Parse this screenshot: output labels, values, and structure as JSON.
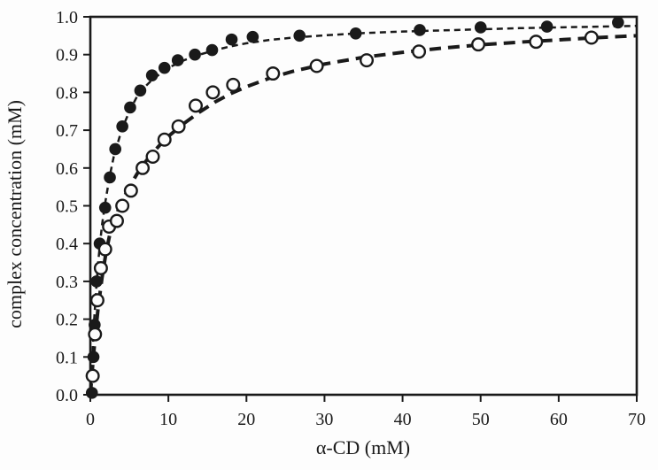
{
  "figure": {
    "background": "#fdfdfd",
    "ink_color": "#1a1a1a"
  },
  "chart_data": {
    "type": "scatter",
    "title": "",
    "xlabel": "α-CD (mM)",
    "ylabel": "complex concentration (mM)",
    "xlim": [
      0,
      70
    ],
    "ylim": [
      0.0,
      1.0
    ],
    "grid": false,
    "legend_position": "none",
    "frame": "full-box",
    "x_ticks": {
      "values": [
        0,
        10,
        20,
        30,
        40,
        50,
        60,
        70
      ],
      "labels": [
        "0",
        "10",
        "20",
        "30",
        "40",
        "50",
        "60",
        "70"
      ]
    },
    "y_ticks": {
      "values": [
        0,
        0.1,
        0.2,
        0.3,
        0.4,
        0.5,
        0.6,
        0.7,
        0.8,
        0.9,
        1.0
      ],
      "labels": [
        "0.0",
        "0.1",
        "0.2",
        "0.3",
        "0.4",
        "0.5",
        "0.6",
        "0.7",
        "0.8",
        "0.9",
        "1.0"
      ]
    },
    "series": [
      {
        "name": "filled circles",
        "marker": "filled-circle",
        "color": "#1a1a1a",
        "points": [
          [
            0.2,
            0.005
          ],
          [
            0.4,
            0.1
          ],
          [
            0.55,
            0.185
          ],
          [
            0.8,
            0.3
          ],
          [
            1.2,
            0.4
          ],
          [
            1.9,
            0.495
          ],
          [
            2.5,
            0.575
          ],
          [
            3.2,
            0.65
          ],
          [
            4.1,
            0.71
          ],
          [
            5.1,
            0.76
          ],
          [
            6.4,
            0.805
          ],
          [
            7.9,
            0.845
          ],
          [
            9.5,
            0.865
          ],
          [
            11.2,
            0.885
          ],
          [
            13.4,
            0.9
          ],
          [
            15.6,
            0.912
          ],
          [
            18.1,
            0.94
          ],
          [
            20.8,
            0.947
          ],
          [
            26.8,
            0.95
          ],
          [
            34.0,
            0.956
          ],
          [
            42.2,
            0.965
          ],
          [
            50.0,
            0.972
          ],
          [
            58.5,
            0.974
          ],
          [
            67.6,
            0.985
          ]
        ]
      },
      {
        "name": "open circles",
        "marker": "open-circle",
        "color": "#1a1a1a",
        "points": [
          [
            0.3,
            0.05
          ],
          [
            0.6,
            0.16
          ],
          [
            0.9,
            0.25
          ],
          [
            1.35,
            0.335
          ],
          [
            1.9,
            0.385
          ],
          [
            2.4,
            0.445
          ],
          [
            3.4,
            0.46
          ],
          [
            4.1,
            0.5
          ],
          [
            5.2,
            0.54
          ],
          [
            6.7,
            0.6
          ],
          [
            8.0,
            0.63
          ],
          [
            9.5,
            0.675
          ],
          [
            11.3,
            0.71
          ],
          [
            13.5,
            0.765
          ],
          [
            15.7,
            0.8
          ],
          [
            18.3,
            0.82
          ],
          [
            23.4,
            0.85
          ],
          [
            29.0,
            0.87
          ],
          [
            35.4,
            0.885
          ],
          [
            42.1,
            0.908
          ],
          [
            49.7,
            0.927
          ],
          [
            57.1,
            0.934
          ],
          [
            64.2,
            0.945
          ]
        ]
      }
    ],
    "fit_curves": [
      {
        "series": "filled circles",
        "line_style": "short-dash",
        "points": [
          [
            0,
            0
          ],
          [
            0.25,
            0.1
          ],
          [
            0.5,
            0.2
          ],
          [
            0.75,
            0.28
          ],
          [
            1,
            0.35
          ],
          [
            1.5,
            0.45
          ],
          [
            2,
            0.52
          ],
          [
            2.5,
            0.58
          ],
          [
            3,
            0.63
          ],
          [
            4,
            0.7
          ],
          [
            5,
            0.75
          ],
          [
            6,
            0.79
          ],
          [
            7,
            0.815
          ],
          [
            8,
            0.835
          ],
          [
            9,
            0.85
          ],
          [
            10,
            0.865
          ],
          [
            12,
            0.885
          ],
          [
            14,
            0.9
          ],
          [
            16,
            0.912
          ],
          [
            18,
            0.922
          ],
          [
            20,
            0.93
          ],
          [
            23,
            0.939
          ],
          [
            26,
            0.945
          ],
          [
            30,
            0.951
          ],
          [
            35,
            0.957
          ],
          [
            40,
            0.961
          ],
          [
            45,
            0.964
          ],
          [
            50,
            0.967
          ],
          [
            55,
            0.97
          ],
          [
            60,
            0.972
          ],
          [
            65,
            0.974
          ],
          [
            70,
            0.976
          ]
        ]
      },
      {
        "series": "open circles",
        "line_style": "long-dash",
        "points": [
          [
            0,
            0
          ],
          [
            0.25,
            0.065
          ],
          [
            0.5,
            0.125
          ],
          [
            0.75,
            0.18
          ],
          [
            1,
            0.23
          ],
          [
            1.5,
            0.31
          ],
          [
            2,
            0.375
          ],
          [
            2.5,
            0.425
          ],
          [
            3,
            0.46
          ],
          [
            4,
            0.51
          ],
          [
            5,
            0.55
          ],
          [
            6,
            0.585
          ],
          [
            7,
            0.615
          ],
          [
            8,
            0.64
          ],
          [
            9,
            0.663
          ],
          [
            10,
            0.684
          ],
          [
            12,
            0.718
          ],
          [
            14,
            0.748
          ],
          [
            16,
            0.775
          ],
          [
            18,
            0.797
          ],
          [
            20,
            0.815
          ],
          [
            23,
            0.838
          ],
          [
            26,
            0.856
          ],
          [
            30,
            0.875
          ],
          [
            35,
            0.893
          ],
          [
            40,
            0.906
          ],
          [
            45,
            0.917
          ],
          [
            50,
            0.926
          ],
          [
            55,
            0.933
          ],
          [
            60,
            0.939
          ],
          [
            65,
            0.945
          ],
          [
            70,
            0.95
          ]
        ]
      }
    ]
  }
}
